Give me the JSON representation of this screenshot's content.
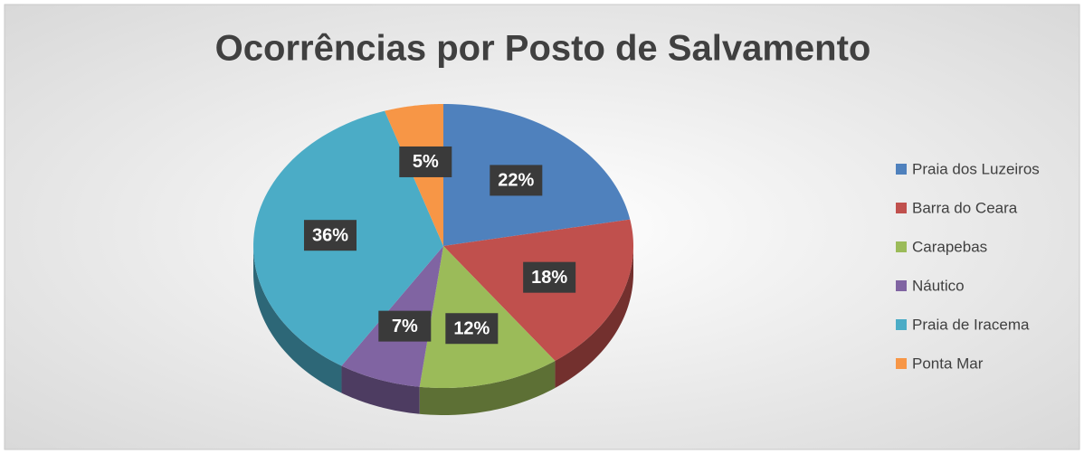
{
  "chart_data": {
    "type": "pie",
    "title": "Ocorrências por Posto de Salvamento",
    "categories": [
      "Praia dos Luzeiros",
      "Barra do Ceara",
      "Carapebas",
      "Náutico",
      "Praia de Iracema",
      "Ponta Mar"
    ],
    "values": [
      22,
      18,
      12,
      7,
      36,
      5
    ],
    "value_labels": [
      "22%",
      "18%",
      "12%",
      "7%",
      "36%",
      "5%"
    ],
    "colors": [
      "#4f81bd",
      "#c0504d",
      "#9bbb59",
      "#8064a2",
      "#4bacc6",
      "#f79646"
    ],
    "legend": "right"
  }
}
